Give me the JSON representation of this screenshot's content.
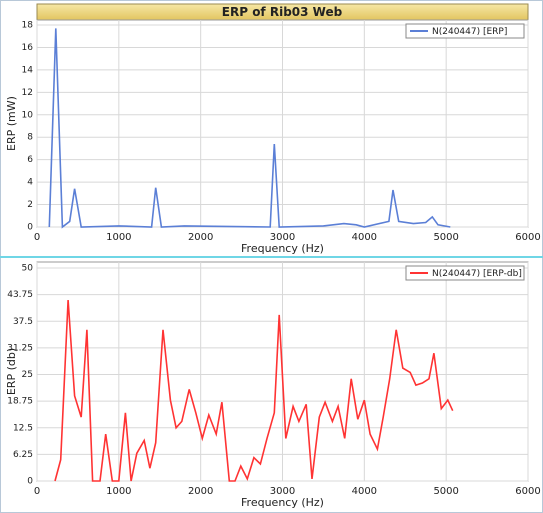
{
  "chart_data": [
    {
      "type": "line",
      "title": "ERP of Rib03 Web",
      "x_label": "Frequency (Hz)",
      "y_label": "ERP (mW)",
      "x": [
        150,
        230,
        310,
        400,
        460,
        540,
        1000,
        1400,
        1450,
        1520,
        1800,
        2850,
        2900,
        2960,
        3500,
        3750,
        3900,
        4000,
        4300,
        4350,
        4420,
        4600,
        4750,
        4830,
        4900,
        5050
      ],
      "series": [
        {
          "name": "N(240447) [ERP]",
          "color": "#5b7fd6",
          "values": [
            0,
            17.7,
            0,
            0.5,
            3.4,
            0,
            0.1,
            0,
            3.5,
            0,
            0.1,
            0,
            7.4,
            0,
            0.1,
            0.3,
            0.2,
            0,
            0.5,
            3.3,
            0.5,
            0.3,
            0.4,
            0.9,
            0.2,
            0
          ]
        }
      ],
      "xlim": [
        0,
        6000
      ],
      "xticks": [
        0,
        1000,
        2000,
        3000,
        4000,
        5000,
        6000
      ],
      "ylim": [
        0,
        18
      ],
      "yticks": [
        0,
        2,
        4,
        6,
        8,
        10,
        12,
        14,
        16,
        18
      ],
      "grid": true,
      "legend": "top-right"
    },
    {
      "type": "line",
      "x_label": "Frequency (Hz)",
      "y_label": "ERP (db)",
      "x": [
        220,
        290,
        380,
        460,
        540,
        610,
        680,
        770,
        840,
        920,
        1000,
        1080,
        1150,
        1220,
        1310,
        1380,
        1450,
        1540,
        1630,
        1700,
        1770,
        1860,
        1940,
        2020,
        2100,
        2190,
        2260,
        2350,
        2420,
        2490,
        2570,
        2650,
        2730,
        2810,
        2900,
        2960,
        3040,
        3130,
        3200,
        3290,
        3360,
        3450,
        3520,
        3610,
        3680,
        3760,
        3840,
        3920,
        4000,
        4070,
        4160,
        4230,
        4310,
        4390,
        4470,
        4560,
        4630,
        4710,
        4790,
        4850,
        4940,
        5020,
        5080
      ],
      "series": [
        {
          "name": "N(240447) [ERP-db]",
          "color": "#ff3333",
          "values": [
            0,
            5,
            42.5,
            20,
            15,
            35.5,
            0,
            0,
            11,
            0,
            0,
            16,
            0,
            6.5,
            9.5,
            3,
            9,
            35.5,
            19,
            12.5,
            14,
            21.5,
            16,
            10,
            15.5,
            11,
            18.5,
            0,
            0,
            3.5,
            0.5,
            5.5,
            4,
            10,
            16,
            39,
            10,
            17.5,
            14,
            18,
            0.5,
            15,
            18.5,
            14,
            17.5,
            10,
            24,
            14.5,
            19,
            11,
            7.5,
            15,
            24,
            35.5,
            26.5,
            25.5,
            22.5,
            23,
            24,
            30,
            17,
            19,
            16.5
          ]
        }
      ],
      "xlim": [
        0,
        6000
      ],
      "xticks": [
        0,
        1000,
        2000,
        3000,
        4000,
        5000,
        6000
      ],
      "ylim": [
        0,
        50
      ],
      "yticks": [
        0,
        6.25,
        12.5,
        18.75,
        25,
        31.25,
        37.5,
        43.75,
        50
      ],
      "grid": true,
      "legend": "top-right"
    }
  ]
}
